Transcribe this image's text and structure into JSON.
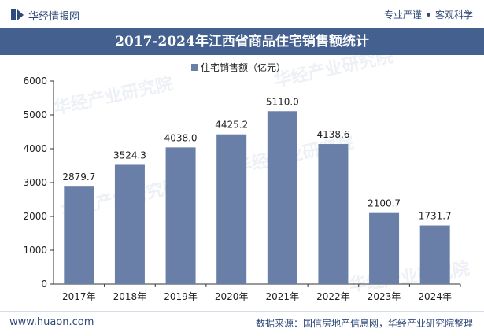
{
  "header": {
    "brand": "华经情报网",
    "slogan_left": "专业严谨",
    "slogan_right": "客观科学"
  },
  "chart_data": {
    "type": "bar",
    "title": "2017-2024年江西省商品住宅销售额统计",
    "legend": "住宅销售额（亿元）",
    "categories": [
      "2017年",
      "2018年",
      "2019年",
      "2020年",
      "2021年",
      "2022年",
      "2023年",
      "2024年"
    ],
    "values": [
      2879.7,
      3524.3,
      4038.0,
      4425.2,
      5110.0,
      4138.6,
      2100.7,
      1731.7
    ],
    "labels": [
      "2879.7",
      "3524.3",
      "4038.0",
      "4425.2",
      "5110.0",
      "4138.6",
      "2100.7",
      "1731.7"
    ],
    "yticks": [
      "0",
      "1000",
      "2000",
      "3000",
      "4000",
      "5000",
      "6000"
    ],
    "ylim": [
      0,
      6000
    ],
    "bar_color": "#6a7fa8",
    "watermark": "华经产业研究院"
  },
  "footer": {
    "website": "www.huaon.com",
    "source": "数据来源：国信房地产信息网，华经产业研究院整理"
  }
}
